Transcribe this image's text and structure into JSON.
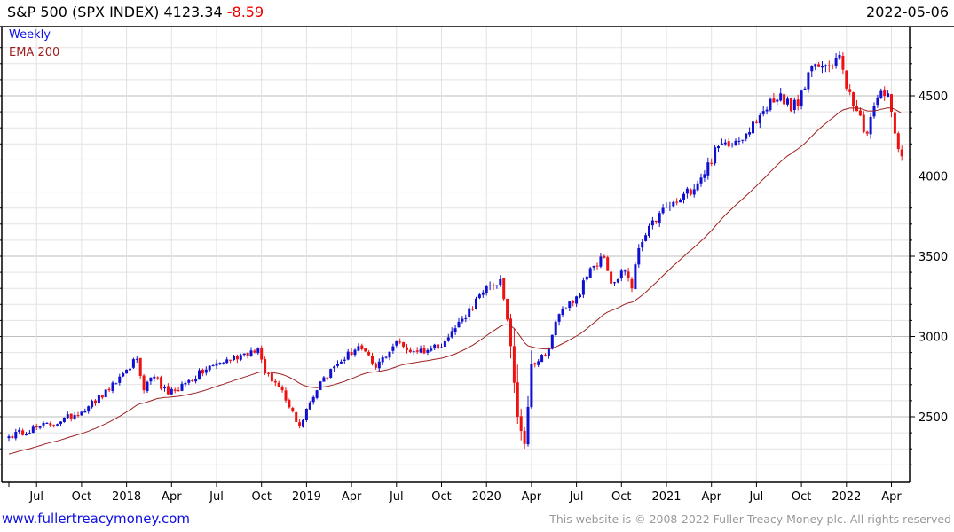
{
  "header": {
    "name": "S&P 500 (SPX INDEX)",
    "last": "4123.34",
    "change": "-8.59",
    "date": "2022-05-06"
  },
  "legend": {
    "weekly": "Weekly",
    "ema": "EMA 200"
  },
  "footer": {
    "url": "www.fullertreacymoney.com",
    "copyright": "This website is © 2008-2022 Fuller Treacy Money plc. All rights reserved"
  },
  "colors": {
    "up": "#1010d0",
    "down": "#ee1111",
    "ema": "#a02020",
    "grid": "#e2e2e2",
    "major_grid": "#bdbdbd"
  },
  "chart_data": {
    "type": "candlestick",
    "title": "S&P 500 (SPX INDEX) Weekly",
    "ylim": [
      2150,
      4850
    ],
    "yticks": [
      2500,
      3000,
      3500,
      4000,
      4500
    ],
    "yticks_labels": [
      "2500",
      "3000",
      "3500",
      "4000",
      "4500"
    ],
    "xticks": [
      {
        "label": "Jul",
        "week": 8
      },
      {
        "label": "Oct",
        "week": 21
      },
      {
        "label": "2018",
        "week": 34
      },
      {
        "label": "Apr",
        "week": 47
      },
      {
        "label": "Jul",
        "week": 60
      },
      {
        "label": "Oct",
        "week": 73
      },
      {
        "label": "2019",
        "week": 86
      },
      {
        "label": "Apr",
        "week": 99
      },
      {
        "label": "Jul",
        "week": 112
      },
      {
        "label": "Oct",
        "week": 125
      },
      {
        "label": "2020",
        "week": 138
      },
      {
        "label": "Apr",
        "week": 151
      },
      {
        "label": "Jul",
        "week": 164
      },
      {
        "label": "Oct",
        "week": 177
      },
      {
        "label": "2021",
        "week": 190
      },
      {
        "label": "Apr",
        "week": 203
      },
      {
        "label": "Jul",
        "week": 216
      },
      {
        "label": "Oct",
        "week": 229
      },
      {
        "label": "2022",
        "week": 242
      },
      {
        "label": "Apr",
        "week": 255
      }
    ],
    "weeks": 258,
    "close_anchors": [
      [
        0,
        2378
      ],
      [
        8,
        2433
      ],
      [
        15,
        2470
      ],
      [
        23,
        2565
      ],
      [
        29,
        2665
      ],
      [
        33,
        2770
      ],
      [
        37,
        2860
      ],
      [
        39,
        2665
      ],
      [
        42,
        2750
      ],
      [
        46,
        2640
      ],
      [
        51,
        2710
      ],
      [
        59,
        2820
      ],
      [
        67,
        2885
      ],
      [
        72,
        2925
      ],
      [
        74,
        2770
      ],
      [
        79,
        2665
      ],
      [
        84,
        2440
      ],
      [
        86,
        2550
      ],
      [
        90,
        2720
      ],
      [
        95,
        2830
      ],
      [
        101,
        2940
      ],
      [
        106,
        2805
      ],
      [
        112,
        2970
      ],
      [
        115,
        2915
      ],
      [
        121,
        2915
      ],
      [
        126,
        2970
      ],
      [
        131,
        3110
      ],
      [
        137,
        3275
      ],
      [
        142,
        3357
      ],
      [
        145,
        2940
      ],
      [
        147,
        2500
      ],
      [
        149,
        2330
      ],
      [
        151,
        2830
      ],
      [
        155,
        2885
      ],
      [
        159,
        3140
      ],
      [
        164,
        3250
      ],
      [
        169,
        3440
      ],
      [
        172,
        3490
      ],
      [
        174,
        3330
      ],
      [
        178,
        3410
      ],
      [
        180,
        3300
      ],
      [
        182,
        3550
      ],
      [
        188,
        3770
      ],
      [
        194,
        3850
      ],
      [
        200,
        3990
      ],
      [
        205,
        4185
      ],
      [
        213,
        4265
      ],
      [
        218,
        4405
      ],
      [
        223,
        4515
      ],
      [
        226,
        4405
      ],
      [
        230,
        4545
      ],
      [
        232,
        4685
      ],
      [
        237,
        4685
      ],
      [
        240,
        4755
      ],
      [
        242,
        4545
      ],
      [
        245,
        4405
      ],
      [
        248,
        4265
      ],
      [
        251,
        4490
      ],
      [
        254,
        4515
      ],
      [
        256,
        4265
      ],
      [
        258,
        4123
      ]
    ],
    "ema_period_weeks": 40,
    "ema_start": 2262
  }
}
